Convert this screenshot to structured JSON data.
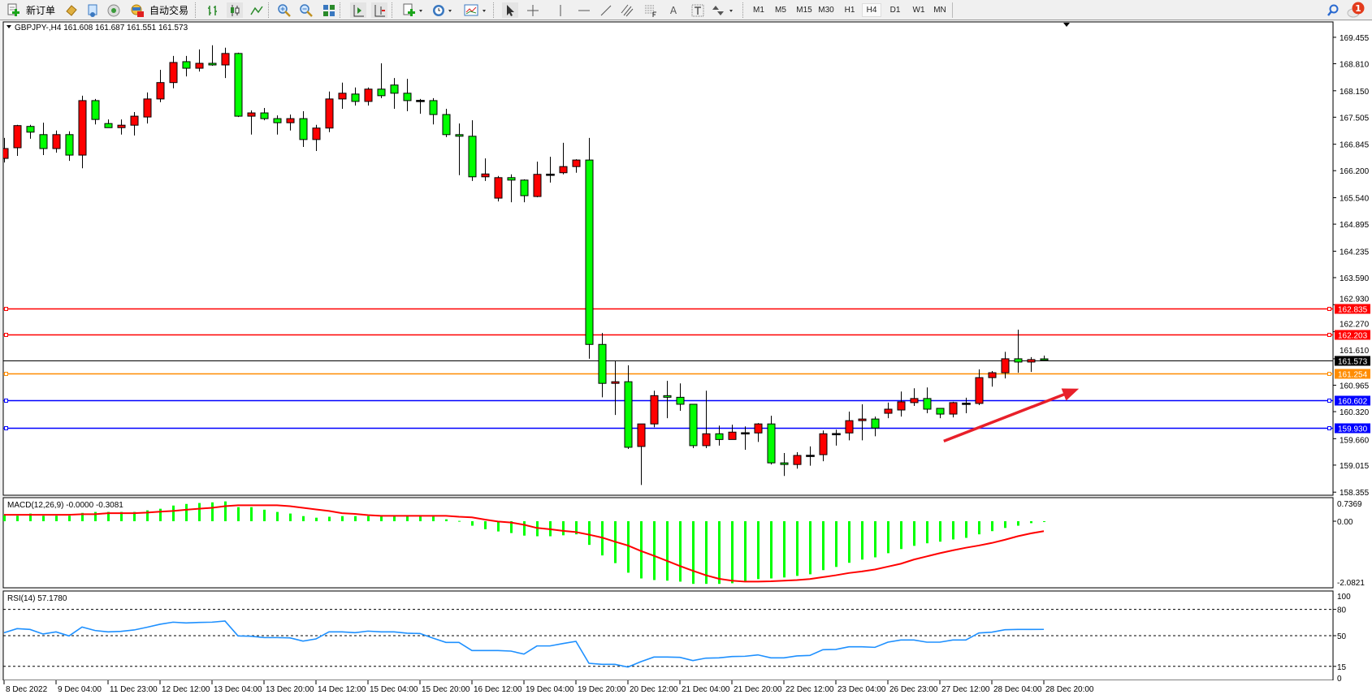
{
  "toolbar": {
    "new_order_label": "新订单",
    "auto_trade_label": "自动交易",
    "text_tool_label": "A",
    "timeframes": [
      "M1",
      "M5",
      "M15",
      "M30",
      "H1",
      "H4",
      "D1",
      "W1",
      "MN"
    ],
    "selected_timeframe": "H4",
    "alert_count": "1"
  },
  "chart_title": "GBPJPY-,H4  161.608 161.687 161.551 161.573",
  "macd_label": "MACD(12,26,9) -0.0000 -0.3081",
  "rsi_label": "RSI(14) 57.1780",
  "colors": {
    "bull": "#ff0000",
    "bear": "#00ff00",
    "macd_hist": "#00ff00",
    "macd_signal": "#ff0000",
    "rsi": "#1e90ff",
    "arrow": "#e8202a"
  },
  "chart_data": [
    {
      "type": "candlestick",
      "symbol": "GBPJPY-",
      "timeframe": "H4",
      "ylim": [
        158.28,
        169.83
      ],
      "price_ticks": [
        "169.455",
        "168.810",
        "168.150",
        "167.505",
        "166.845",
        "166.200",
        "165.540",
        "164.895",
        "164.235",
        "163.590",
        "162.930",
        "162.270",
        "161.610",
        "160.965",
        "160.320",
        "159.660",
        "159.015",
        "158.355"
      ],
      "time_labels": [
        "8 Dec 2022",
        "9 Dec 04:00",
        "11 Dec 23:00",
        "12 Dec 12:00",
        "13 Dec 04:00",
        "13 Dec 20:00",
        "14 Dec 12:00",
        "15 Dec 04:00",
        "15 Dec 20:00",
        "16 Dec 12:00",
        "19 Dec 04:00",
        "19 Dec 20:00",
        "20 Dec 12:00",
        "21 Dec 04:00",
        "21 Dec 20:00",
        "22 Dec 12:00",
        "23 Dec 04:00",
        "26 Dec 23:00",
        "27 Dec 12:00",
        "28 Dec 04:00",
        "28 Dec 20:00"
      ],
      "time_label_every_bars": 4,
      "ohlc": [
        [
          166.5,
          167.0,
          166.4,
          166.74
        ],
        [
          166.76,
          167.32,
          166.56,
          167.3
        ],
        [
          167.28,
          167.32,
          166.98,
          167.14
        ],
        [
          167.08,
          167.37,
          166.58,
          166.74
        ],
        [
          166.74,
          167.18,
          166.64,
          167.08
        ],
        [
          167.08,
          167.16,
          166.44,
          166.58
        ],
        [
          166.58,
          168.03,
          166.26,
          167.91
        ],
        [
          167.91,
          167.95,
          167.33,
          167.45
        ],
        [
          167.35,
          167.45,
          167.25,
          167.25
        ],
        [
          167.25,
          167.45,
          167.08,
          167.31
        ],
        [
          167.31,
          167.63,
          167.06,
          167.53
        ],
        [
          167.51,
          168.11,
          167.35,
          167.95
        ],
        [
          167.95,
          168.66,
          167.87,
          168.35
        ],
        [
          168.35,
          169.0,
          168.21,
          168.84
        ],
        [
          168.86,
          169.0,
          168.5,
          168.7
        ],
        [
          168.7,
          169.16,
          168.62,
          168.82
        ],
        [
          168.82,
          169.26,
          168.76,
          168.78
        ],
        [
          168.78,
          169.2,
          168.46,
          169.06
        ],
        [
          169.06,
          169.08,
          167.51,
          167.53
        ],
        [
          167.53,
          167.67,
          167.08,
          167.61
        ],
        [
          167.61,
          167.73,
          167.43,
          167.47
        ],
        [
          167.47,
          167.55,
          167.08,
          167.37
        ],
        [
          167.37,
          167.57,
          167.18,
          167.47
        ],
        [
          167.47,
          167.65,
          166.78,
          166.96
        ],
        [
          166.96,
          167.32,
          166.68,
          167.24
        ],
        [
          167.24,
          168.13,
          167.14,
          167.95
        ],
        [
          167.95,
          168.35,
          167.71,
          168.09
        ],
        [
          168.07,
          168.23,
          167.79,
          167.89
        ],
        [
          167.89,
          168.23,
          167.79,
          168.19
        ],
        [
          168.19,
          168.82,
          167.97,
          168.03
        ],
        [
          168.29,
          168.46,
          167.71,
          168.09
        ],
        [
          168.09,
          168.44,
          167.65,
          167.91
        ],
        [
          167.91,
          167.95,
          167.59,
          167.91
        ],
        [
          167.91,
          167.97,
          167.33,
          167.57
        ],
        [
          167.57,
          167.71,
          167.02,
          167.08
        ],
        [
          167.08,
          167.35,
          166.09,
          167.04
        ],
        [
          167.04,
          167.43,
          165.95,
          166.05
        ],
        [
          166.05,
          166.5,
          165.95,
          166.12
        ],
        [
          165.53,
          166.07,
          165.45,
          166.03
        ],
        [
          166.03,
          166.11,
          165.43,
          165.97
        ],
        [
          165.97,
          165.99,
          165.43,
          165.59
        ],
        [
          165.57,
          166.42,
          165.55,
          166.11
        ],
        [
          166.11,
          166.54,
          165.91,
          166.11
        ],
        [
          166.15,
          166.88,
          166.11,
          166.3
        ],
        [
          166.3,
          166.48,
          166.15,
          166.46
        ],
        [
          166.46,
          167.0,
          161.61,
          161.96
        ],
        [
          161.96,
          162.24,
          160.67,
          161.01
        ],
        [
          161.01,
          161.55,
          160.24,
          161.05
        ],
        [
          161.05,
          161.45,
          159.41,
          159.45
        ],
        [
          159.47,
          160.02,
          158.53,
          160.02
        ],
        [
          160.02,
          160.83,
          159.94,
          160.71
        ],
        [
          160.71,
          161.07,
          160.16,
          160.67
        ],
        [
          160.67,
          161.01,
          160.34,
          160.5
        ],
        [
          160.5,
          160.5,
          159.43,
          159.49
        ],
        [
          159.49,
          160.83,
          159.43,
          159.78
        ],
        [
          159.78,
          159.98,
          159.49,
          159.64
        ],
        [
          159.64,
          160.0,
          159.64,
          159.82
        ],
        [
          159.8,
          159.96,
          159.39,
          159.8
        ],
        [
          159.8,
          160.04,
          159.58,
          160.02
        ],
        [
          160.02,
          160.22,
          159.03,
          159.07
        ],
        [
          159.07,
          159.31,
          158.75,
          159.03
        ],
        [
          159.03,
          159.33,
          158.93,
          159.25
        ],
        [
          159.25,
          159.47,
          159.0,
          159.25
        ],
        [
          159.27,
          159.86,
          159.11,
          159.78
        ],
        [
          159.78,
          159.88,
          159.49,
          159.78
        ],
        [
          159.8,
          160.32,
          159.62,
          160.1
        ],
        [
          160.1,
          160.5,
          159.62,
          160.14
        ],
        [
          160.14,
          160.2,
          159.72,
          159.92
        ],
        [
          160.28,
          160.54,
          160.16,
          160.38
        ],
        [
          160.36,
          160.81,
          160.2,
          160.56
        ],
        [
          160.54,
          160.89,
          160.46,
          160.64
        ],
        [
          160.64,
          160.91,
          160.28,
          160.38
        ],
        [
          160.4,
          160.4,
          160.16,
          160.26
        ],
        [
          160.26,
          160.56,
          160.18,
          160.54
        ],
        [
          160.52,
          160.66,
          160.28,
          160.52
        ],
        [
          160.52,
          161.35,
          160.48,
          161.15
        ],
        [
          161.15,
          161.31,
          160.93,
          161.27
        ],
        [
          161.27,
          161.78,
          161.13,
          161.61
        ],
        [
          161.61,
          162.32,
          161.27,
          161.53
        ],
        [
          161.53,
          161.65,
          161.29,
          161.59
        ],
        [
          161.608,
          161.687,
          161.551,
          161.573
        ]
      ],
      "levels": [
        {
          "price": 162.835,
          "label": "162.835",
          "color": "#ff0000",
          "text": "#ffffff"
        },
        {
          "price": 162.203,
          "label": "162.203",
          "color": "#ff0000",
          "text": "#ffffff"
        },
        {
          "price": 161.573,
          "label": "161.573",
          "color": "#000000",
          "text": "#ffffff",
          "bid": true
        },
        {
          "price": 161.254,
          "label": "161.254",
          "color": "#ff8c00",
          "text": "#ffffff"
        },
        {
          "price": 160.602,
          "label": "160.602",
          "color": "#0000ff",
          "text": "#ffffff"
        },
        {
          "price": 159.93,
          "label": "159.930",
          "color": "#0000ff",
          "text": "#ffffff"
        }
      ],
      "arrow": {
        "from": {
          "bar": 72.3,
          "price": 159.6
        },
        "to": {
          "bar": 82.7,
          "price": 160.88
        }
      }
    },
    {
      "type": "bar+line",
      "name": "MACD(12,26,9)",
      "ylim": [
        -2.0821,
        0.7369
      ],
      "ticks": [
        "0.7369",
        "0.00",
        "-2.0821"
      ],
      "histogram": [
        0.19,
        0.17,
        0.24,
        0.17,
        0.17,
        0.17,
        0.26,
        0.29,
        0.29,
        0.29,
        0.29,
        0.34,
        0.39,
        0.49,
        0.54,
        0.57,
        0.59,
        0.62,
        0.44,
        0.44,
        0.36,
        0.29,
        0.24,
        0.16,
        0.11,
        0.14,
        0.16,
        0.16,
        0.16,
        0.16,
        0.16,
        0.16,
        0.16,
        0.16,
        0.06,
        0.01,
        -0.14,
        -0.25,
        -0.32,
        -0.37,
        -0.45,
        -0.47,
        -0.47,
        -0.44,
        -0.41,
        -0.74,
        -1.07,
        -1.31,
        -1.61,
        -1.79,
        -1.84,
        -1.86,
        -1.89,
        -1.96,
        -1.96,
        -1.96,
        -1.94,
        -1.89,
        -1.81,
        -1.79,
        -1.76,
        -1.71,
        -1.66,
        -1.53,
        -1.43,
        -1.3,
        -1.2,
        -1.13,
        -1.0,
        -0.87,
        -0.77,
        -0.69,
        -0.64,
        -0.57,
        -0.52,
        -0.41,
        -0.31,
        -0.21,
        -0.14,
        -0.06,
        -0.0
      ],
      "signal": [
        0.2,
        0.2,
        0.2,
        0.2,
        0.2,
        0.2,
        0.22,
        0.22,
        0.25,
        0.25,
        0.25,
        0.27,
        0.3,
        0.32,
        0.36,
        0.39,
        0.42,
        0.47,
        0.5,
        0.5,
        0.5,
        0.5,
        0.47,
        0.42,
        0.37,
        0.32,
        0.25,
        0.23,
        0.19,
        0.17,
        0.17,
        0.17,
        0.17,
        0.17,
        0.17,
        0.14,
        0.12,
        0.05,
        -0.01,
        -0.04,
        -0.11,
        -0.21,
        -0.25,
        -0.3,
        -0.34,
        -0.42,
        -0.51,
        -0.64,
        -0.76,
        -0.93,
        -1.08,
        -1.24,
        -1.4,
        -1.55,
        -1.69,
        -1.8,
        -1.86,
        -1.89,
        -1.89,
        -1.88,
        -1.86,
        -1.84,
        -1.81,
        -1.75,
        -1.69,
        -1.62,
        -1.57,
        -1.51,
        -1.42,
        -1.33,
        -1.2,
        -1.1,
        -1.0,
        -0.91,
        -0.83,
        -0.76,
        -0.68,
        -0.58,
        -0.47,
        -0.38,
        -0.31
      ]
    },
    {
      "type": "line",
      "name": "RSI(14)",
      "ylim": [
        0,
        100
      ],
      "ticks": [
        "100",
        "80",
        "50",
        "15",
        "0"
      ],
      "levels": [
        80,
        50,
        15
      ],
      "values": [
        53.4,
        58.0,
        57.1,
        51.9,
        54.3,
        49.7,
        59.9,
        55.9,
        54.3,
        54.9,
        56.5,
        59.6,
        63.0,
        65.4,
        64.5,
        65.1,
        65.4,
        66.7,
        49.7,
        49.4,
        47.8,
        47.8,
        47.5,
        43.8,
        46.3,
        54.3,
        54.3,
        53.4,
        55.2,
        54.3,
        54.3,
        52.8,
        52.5,
        47.2,
        42.3,
        42.3,
        33.0,
        33.0,
        33.0,
        32.4,
        29.0,
        38.3,
        38.3,
        41.0,
        43.5,
        18.5,
        17.3,
        17.3,
        14.2,
        20.4,
        25.6,
        25.6,
        25.3,
        21.6,
        24.4,
        24.7,
        26.2,
        26.5,
        28.1,
        24.7,
        24.7,
        26.9,
        27.5,
        34.0,
        34.3,
        37.3,
        37.3,
        36.7,
        42.6,
        45.1,
        45.1,
        42.6,
        42.6,
        45.1,
        45.1,
        53.1,
        54.0,
        56.8,
        57.1,
        57.1,
        57.178
      ]
    }
  ]
}
